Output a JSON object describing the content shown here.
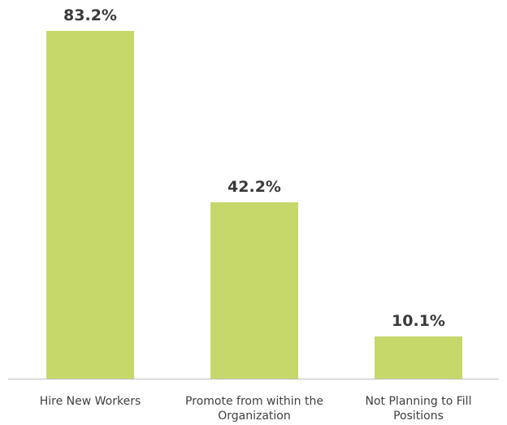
{
  "chart_data": {
    "type": "bar",
    "categories": [
      [
        "Hire New Workers"
      ],
      [
        "Promote from within the",
        "Organization"
      ],
      [
        "Not Planning to Fill",
        "Positions"
      ]
    ],
    "values": [
      83.2,
      42.2,
      10.1
    ],
    "data_labels": [
      "83.2%",
      "42.2%",
      "10.1%"
    ],
    "title": "",
    "xlabel": "",
    "ylabel": "",
    "ylim": [
      0,
      83.2
    ],
    "grid": false,
    "legend": "none",
    "bar_color": "#c7d86a",
    "axis_color": "#bfbfbf",
    "label_color": "#3a3a3a"
  }
}
